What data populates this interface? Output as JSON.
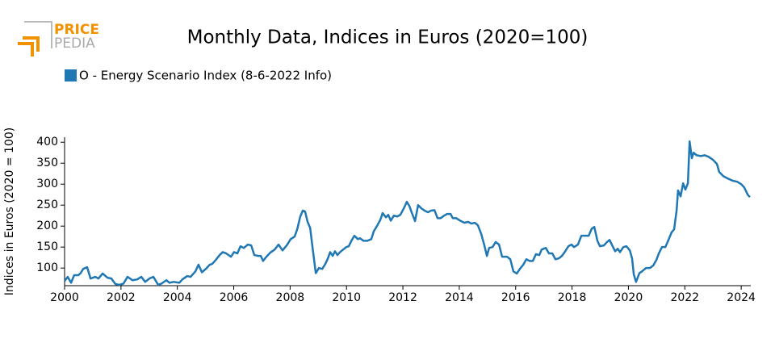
{
  "logo": {
    "top": "PRICE",
    "bottom": "PEDIA"
  },
  "chart_data": {
    "type": "line",
    "title": "Monthly Data, Indices in Euros (2020=100)",
    "y_label": "Indices in Euros (2020 = 100)",
    "legend": "top-left",
    "xlim": [
      2000,
      2024.34
    ],
    "xticks": [
      2000,
      2002,
      2004,
      2006,
      2008,
      2010,
      2012,
      2014,
      2016,
      2018,
      2020,
      2022,
      2024
    ],
    "ylim": [
      58,
      412
    ],
    "yticks": [
      100,
      150,
      200,
      250,
      300,
      350,
      400
    ],
    "x": [
      2000.0,
      2000.11,
      2000.23,
      2000.34,
      2000.49,
      2000.57,
      2000.66,
      2000.8,
      2000.92,
      2001.09,
      2001.2,
      2001.35,
      2001.52,
      2001.66,
      2001.8,
      2001.95,
      2002.09,
      2002.23,
      2002.41,
      2002.58,
      2002.72,
      2002.86,
      2003.01,
      2003.15,
      2003.32,
      2003.44,
      2003.61,
      2003.72,
      2003.87,
      2004.07,
      2004.18,
      2004.35,
      2004.47,
      2004.64,
      2004.75,
      2004.87,
      2005.01,
      2005.15,
      2005.24,
      2005.36,
      2005.5,
      2005.61,
      2005.73,
      2005.9,
      2006.01,
      2006.13,
      2006.24,
      2006.36,
      2006.5,
      2006.62,
      2006.73,
      2006.87,
      2006.96,
      2007.04,
      2007.16,
      2007.3,
      2007.45,
      2007.59,
      2007.73,
      2007.88,
      2008.02,
      2008.16,
      2008.25,
      2008.36,
      2008.45,
      2008.53,
      2008.62,
      2008.71,
      2008.79,
      2008.91,
      2009.02,
      2009.14,
      2009.25,
      2009.34,
      2009.42,
      2009.51,
      2009.59,
      2009.68,
      2009.77,
      2009.88,
      2009.99,
      2010.08,
      2010.19,
      2010.28,
      2010.4,
      2010.48,
      2010.6,
      2010.74,
      2010.88,
      2010.97,
      2011.08,
      2011.2,
      2011.28,
      2011.4,
      2011.48,
      2011.57,
      2011.68,
      2011.8,
      2011.91,
      2012.03,
      2012.14,
      2012.23,
      2012.31,
      2012.43,
      2012.54,
      2012.66,
      2012.77,
      2012.89,
      2013.0,
      2013.12,
      2013.23,
      2013.34,
      2013.46,
      2013.57,
      2013.69,
      2013.77,
      2013.89,
      2014.03,
      2014.18,
      2014.32,
      2014.43,
      2014.55,
      2014.66,
      2014.78,
      2014.89,
      2014.98,
      2015.06,
      2015.18,
      2015.29,
      2015.41,
      2015.52,
      2015.69,
      2015.81,
      2015.92,
      2016.04,
      2016.15,
      2016.27,
      2016.38,
      2016.49,
      2016.61,
      2016.72,
      2016.84,
      2016.92,
      2017.07,
      2017.18,
      2017.3,
      2017.41,
      2017.53,
      2017.64,
      2017.76,
      2017.87,
      2017.98,
      2018.07,
      2018.21,
      2018.33,
      2018.47,
      2018.59,
      2018.7,
      2018.79,
      2018.9,
      2018.99,
      2019.13,
      2019.24,
      2019.33,
      2019.44,
      2019.53,
      2019.62,
      2019.7,
      2019.82,
      2019.93,
      2020.05,
      2020.13,
      2020.19,
      2020.27,
      2020.39,
      2020.48,
      2020.62,
      2020.76,
      2020.88,
      2020.99,
      2021.08,
      2021.19,
      2021.31,
      2021.42,
      2021.53,
      2021.62,
      2021.71,
      2021.76,
      2021.85,
      2021.94,
      2022.02,
      2022.11,
      2022.17,
      2022.25,
      2022.31,
      2022.42,
      2022.57,
      2022.71,
      2022.85,
      2023.0,
      2023.14,
      2023.22,
      2023.37,
      2023.54,
      2023.71,
      2023.85,
      2024.0,
      2024.11,
      2024.23,
      2024.31
    ],
    "series": [
      {
        "name": "O - Energy Scenario Index (8-6-2022 Info)",
        "color": "#1f77b4",
        "values": [
          69,
          79,
          65,
          83,
          83,
          88,
          98,
          102,
          75,
          79,
          75,
          87,
          77,
          75,
          62,
          60,
          63,
          79,
          71,
          73,
          79,
          67,
          75,
          79,
          60,
          63,
          71,
          65,
          67,
          65,
          73,
          81,
          79,
          92,
          108,
          90,
          98,
          108,
          110,
          119,
          131,
          138,
          135,
          127,
          138,
          135,
          152,
          148,
          156,
          154,
          131,
          129,
          129,
          117,
          127,
          137,
          144,
          156,
          142,
          154,
          169,
          175,
          192,
          223,
          237,
          235,
          210,
          196,
          152,
          88,
          100,
          98,
          110,
          123,
          138,
          129,
          140,
          131,
          138,
          144,
          150,
          152,
          167,
          177,
          169,
          171,
          165,
          165,
          169,
          188,
          200,
          215,
          231,
          221,
          227,
          213,
          225,
          223,
          227,
          242,
          258,
          248,
          233,
          212,
          250,
          242,
          237,
          233,
          237,
          238,
          219,
          219,
          225,
          229,
          229,
          219,
          219,
          213,
          208,
          210,
          206,
          208,
          202,
          181,
          154,
          129,
          148,
          150,
          162,
          156,
          127,
          127,
          121,
          92,
          87,
          98,
          108,
          121,
          117,
          117,
          133,
          131,
          144,
          148,
          135,
          135,
          121,
          123,
          129,
          140,
          152,
          156,
          150,
          156,
          177,
          177,
          177,
          194,
          198,
          165,
          152,
          154,
          162,
          167,
          152,
          140,
          146,
          138,
          150,
          152,
          142,
          123,
          85,
          67,
          88,
          92,
          100,
          100,
          106,
          119,
          135,
          150,
          150,
          167,
          185,
          192,
          238,
          285,
          271,
          302,
          287,
          302,
          402,
          362,
          375,
          369,
          367,
          369,
          365,
          358,
          348,
          329,
          319,
          313,
          308,
          306,
          300,
          292,
          275,
          269
        ]
      }
    ]
  }
}
